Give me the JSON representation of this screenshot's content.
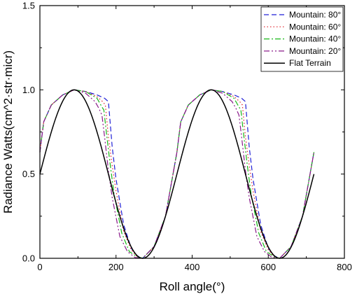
{
  "chart_data": {
    "type": "line",
    "title": "",
    "xlabel": "Roll angle(°)",
    "ylabel": "Radiance Watts(cm^2·str·micr)",
    "xlim": [
      0,
      800
    ],
    "ylim": [
      0.0,
      1.5
    ],
    "x_ticks": [
      "0",
      "200",
      "400",
      "600",
      "800"
    ],
    "y_ticks": [
      "0.0",
      "0.5",
      "1.0",
      "1.5"
    ],
    "grid": false,
    "legend_position": "top-right",
    "series": [
      {
        "name": "Mountain: 80°",
        "color": "#1f1fd6",
        "dash": "7,4",
        "knee_value": 0.93,
        "x": [
          0,
          10,
          30,
          60,
          90,
          120,
          150,
          170,
          175,
          180,
          190,
          200,
          220,
          240,
          255,
          270,
          300,
          330,
          360,
          370,
          390,
          420,
          450,
          480,
          510,
          530,
          535,
          540,
          550,
          560,
          580,
          600,
          615,
          630,
          660,
          690,
          720
        ],
        "y": [
          0.63,
          0.81,
          0.91,
          0.97,
          1.0,
          0.99,
          0.97,
          0.95,
          0.94,
          0.93,
          0.66,
          0.47,
          0.2,
          0.06,
          0.015,
          0.0,
          0.07,
          0.25,
          0.63,
          0.81,
          0.91,
          0.97,
          1.0,
          0.99,
          0.97,
          0.95,
          0.94,
          0.93,
          0.66,
          0.47,
          0.2,
          0.06,
          0.015,
          0.0,
          0.07,
          0.25,
          0.63
        ]
      },
      {
        "name": "Mountain: 60°",
        "color": "#e0202a",
        "dash": "1.5,3",
        "knee_value": 0.91,
        "x": [
          0,
          10,
          30,
          60,
          90,
          120,
          150,
          165,
          172,
          180,
          190,
          200,
          220,
          240,
          255,
          270,
          300,
          330,
          360,
          370,
          390,
          420,
          450,
          480,
          510,
          525,
          532,
          540,
          550,
          560,
          580,
          600,
          615,
          630,
          660,
          690,
          720
        ],
        "y": [
          0.63,
          0.81,
          0.91,
          0.97,
          1.0,
          0.99,
          0.96,
          0.93,
          0.91,
          0.72,
          0.55,
          0.4,
          0.16,
          0.05,
          0.01,
          0.0,
          0.07,
          0.25,
          0.63,
          0.81,
          0.91,
          0.97,
          1.0,
          0.99,
          0.96,
          0.93,
          0.91,
          0.72,
          0.55,
          0.4,
          0.16,
          0.05,
          0.01,
          0.0,
          0.07,
          0.25,
          0.63
        ]
      },
      {
        "name": "Mountain: 40°",
        "color": "#18b818",
        "dash": "8,3,2,3",
        "knee_value": 0.88,
        "x": [
          0,
          10,
          30,
          60,
          90,
          120,
          150,
          160,
          168,
          175,
          185,
          195,
          215,
          235,
          255,
          270,
          300,
          330,
          360,
          370,
          390,
          420,
          450,
          480,
          510,
          520,
          528,
          535,
          545,
          555,
          575,
          595,
          615,
          630,
          660,
          690,
          720
        ],
        "y": [
          0.63,
          0.81,
          0.91,
          0.97,
          1.0,
          0.99,
          0.95,
          0.91,
          0.88,
          0.74,
          0.55,
          0.38,
          0.15,
          0.04,
          0.01,
          0.0,
          0.07,
          0.25,
          0.63,
          0.81,
          0.91,
          0.97,
          1.0,
          0.99,
          0.95,
          0.91,
          0.88,
          0.74,
          0.55,
          0.38,
          0.15,
          0.04,
          0.01,
          0.0,
          0.07,
          0.25,
          0.63
        ]
      },
      {
        "name": "Mountain: 20°",
        "color": "#8a1a8a",
        "dash": "8,3,2,3,2,3",
        "knee_value": 0.85,
        "x": [
          0,
          10,
          30,
          60,
          90,
          120,
          145,
          155,
          163,
          170,
          180,
          190,
          210,
          230,
          250,
          270,
          300,
          330,
          360,
          370,
          390,
          420,
          450,
          480,
          505,
          515,
          523,
          530,
          540,
          550,
          570,
          590,
          610,
          630,
          660,
          690,
          720
        ],
        "y": [
          0.63,
          0.81,
          0.91,
          0.97,
          1.0,
          0.98,
          0.93,
          0.89,
          0.85,
          0.72,
          0.52,
          0.36,
          0.13,
          0.04,
          0.005,
          0.0,
          0.07,
          0.25,
          0.63,
          0.81,
          0.91,
          0.97,
          1.0,
          0.98,
          0.93,
          0.89,
          0.85,
          0.72,
          0.52,
          0.36,
          0.13,
          0.04,
          0.005,
          0.0,
          0.07,
          0.25,
          0.63
        ]
      },
      {
        "name": "Flat Terrain",
        "color": "#000000",
        "dash": "",
        "formula": "sin^2((x+90)/2 degrees)",
        "x": [
          0,
          5,
          15,
          30,
          45,
          60,
          75,
          90,
          105,
          120,
          135,
          150,
          165,
          180,
          195,
          210,
          225,
          240,
          255,
          270,
          285,
          300,
          315,
          330,
          345,
          360,
          365,
          375,
          390,
          405,
          420,
          435,
          450,
          465,
          480,
          495,
          510,
          525,
          540,
          555,
          570,
          585,
          600,
          615,
          630,
          645,
          660,
          675,
          690,
          705,
          720
        ],
        "y": [
          0.5,
          0.54,
          0.63,
          0.75,
          0.85,
          0.93,
          0.98,
          1.0,
          0.98,
          0.93,
          0.85,
          0.75,
          0.63,
          0.5,
          0.37,
          0.25,
          0.15,
          0.07,
          0.02,
          0.0,
          0.02,
          0.07,
          0.15,
          0.25,
          0.37,
          0.5,
          0.54,
          0.63,
          0.75,
          0.85,
          0.93,
          0.98,
          1.0,
          0.98,
          0.93,
          0.85,
          0.75,
          0.63,
          0.5,
          0.37,
          0.25,
          0.15,
          0.07,
          0.02,
          0.0,
          0.02,
          0.07,
          0.15,
          0.25,
          0.37,
          0.5
        ]
      }
    ]
  }
}
